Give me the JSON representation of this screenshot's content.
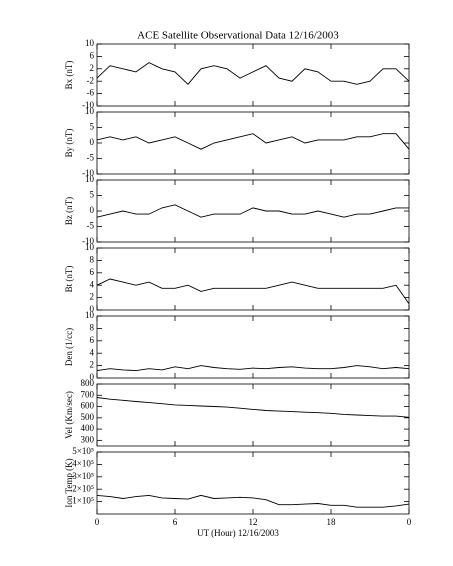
{
  "chart_data": {
    "type": "line",
    "title": "ACE Satellite Observational Data   12/16/2003",
    "xlabel": "UT (Hour)   12/16/2003",
    "color": "#000000",
    "x": [
      0,
      1,
      2,
      3,
      4,
      5,
      6,
      7,
      8,
      9,
      10,
      11,
      12,
      13,
      14,
      15,
      16,
      17,
      18,
      19,
      20,
      21,
      22,
      23,
      24
    ],
    "xlim": [
      0,
      24
    ],
    "xticks": [
      0,
      6,
      12,
      18,
      {
        "value": 24,
        "label": "0"
      }
    ],
    "panels": [
      {
        "ylabel": "Bx (nT)",
        "ylim": [
          -10,
          10
        ],
        "yticks": [
          -10,
          -6,
          -2,
          2,
          6,
          10
        ],
        "values": [
          -1,
          3,
          2,
          1,
          4,
          2,
          1,
          -3,
          2,
          3,
          2,
          -1,
          1,
          3,
          -1,
          -2,
          2,
          1,
          -2,
          -2,
          -3,
          -2,
          2,
          2,
          -2
        ]
      },
      {
        "ylabel": "By (nT)",
        "ylim": [
          -10,
          10
        ],
        "yticks": [
          -10,
          -5,
          0,
          5,
          10
        ],
        "values": [
          1,
          2,
          1,
          2,
          0,
          1,
          2,
          0,
          -2,
          0,
          1,
          2,
          3,
          0,
          1,
          2,
          0,
          1,
          1,
          1,
          2,
          2,
          3,
          3,
          -2
        ]
      },
      {
        "ylabel": "Bz (nT)",
        "ylim": [
          -10,
          10
        ],
        "yticks": [
          -10,
          -5,
          0,
          5,
          10
        ],
        "values": [
          -2,
          -1,
          0,
          -1,
          -1,
          1,
          2,
          0,
          -2,
          -1,
          -1,
          -1,
          1,
          0,
          0,
          -1,
          -1,
          0,
          -1,
          -2,
          -1,
          -1,
          0,
          1,
          1
        ]
      },
      {
        "ylabel": "Bt (nT)",
        "ylim": [
          0,
          10
        ],
        "yticks": [
          0,
          2,
          4,
          6,
          8,
          10
        ],
        "values": [
          4,
          5,
          4.5,
          4,
          4.5,
          3.5,
          3.5,
          4,
          3,
          3.5,
          3.5,
          3.5,
          3.5,
          3.5,
          4,
          4.5,
          4,
          3.5,
          3.5,
          3.5,
          3.5,
          3.5,
          3.5,
          4,
          1
        ]
      },
      {
        "ylabel": "Den (1/cc)",
        "ylim": [
          0,
          10
        ],
        "yticks": [
          0,
          2,
          4,
          6,
          8,
          10
        ],
        "values": [
          1.2,
          1.5,
          1.3,
          1.2,
          1.5,
          1.3,
          1.8,
          1.5,
          2.0,
          1.7,
          1.5,
          1.4,
          1.6,
          1.5,
          1.7,
          1.8,
          1.6,
          1.5,
          1.5,
          1.7,
          2.0,
          1.8,
          1.5,
          1.7,
          1.5
        ]
      },
      {
        "ylabel": "Vel (Km/sec)",
        "ylim": [
          250,
          800
        ],
        "yticks": [
          300,
          400,
          500,
          600,
          700,
          800
        ],
        "values": [
          680,
          665,
          655,
          645,
          635,
          625,
          615,
          610,
          605,
          600,
          595,
          585,
          575,
          565,
          560,
          555,
          550,
          545,
          540,
          530,
          525,
          520,
          515,
          515,
          505
        ]
      },
      {
        "ylabel": "Ion Temp (K)",
        "ylim": [
          0,
          500000
        ],
        "yticks": [
          {
            "value": 100000,
            "label": "1×10⁵"
          },
          {
            "value": 200000,
            "label": "2×10⁵"
          },
          {
            "value": 300000,
            "label": "3×10⁵"
          },
          {
            "value": 400000,
            "label": "4×10⁵"
          },
          {
            "value": 500000,
            "label": "5×10⁵"
          }
        ],
        "values": [
          150000,
          140000,
          125000,
          140000,
          150000,
          130000,
          125000,
          120000,
          150000,
          125000,
          130000,
          135000,
          130000,
          115000,
          75000,
          75000,
          80000,
          85000,
          70000,
          70000,
          55000,
          55000,
          55000,
          65000,
          80000
        ]
      }
    ]
  }
}
